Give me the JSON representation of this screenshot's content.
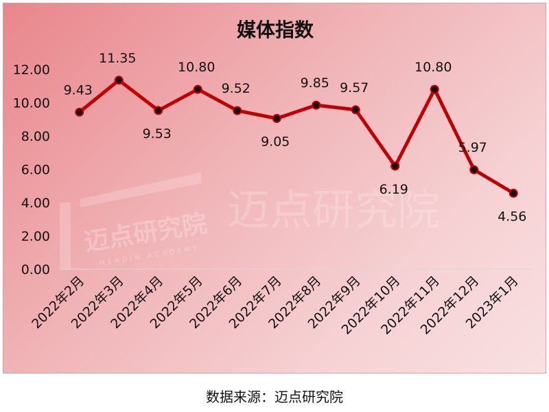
{
  "chart_data": {
    "type": "line",
    "title": "媒体指数",
    "xlabel": "",
    "ylabel": "",
    "categories": [
      "2022年2月",
      "2022年3月",
      "2022年4月",
      "2022年5月",
      "2022年6月",
      "2022年7月",
      "2022年8月",
      "2022年9月",
      "2022年10月",
      "2022年11月",
      "2022年12月",
      "2023年1月"
    ],
    "series": [
      {
        "values": [
          9.43,
          11.35,
          9.53,
          10.8,
          9.52,
          9.05,
          9.85,
          9.57,
          6.19,
          10.8,
          5.97,
          4.56
        ]
      }
    ],
    "data_labels": [
      "9.43",
      "11.35",
      "9.53",
      "10.80",
      "9.52",
      "9.05",
      "9.85",
      "9.57",
      "6.19",
      "10.80",
      "5.97",
      "4.56"
    ],
    "ylim": [
      0,
      12
    ],
    "y_ticks": [
      "0.00",
      "2.00",
      "4.00",
      "6.00",
      "8.00",
      "10.00",
      "12.00"
    ],
    "grid": false,
    "legend": "none",
    "colors": {
      "line": "#c00000",
      "marker": "#111111",
      "background_start": "#e9868b",
      "background_end": "#f9e0e1"
    }
  },
  "watermark": {
    "text": "迈点研究院",
    "subtext": "MEADIN ACADEMY"
  },
  "source": "数据来源：迈点研究院"
}
